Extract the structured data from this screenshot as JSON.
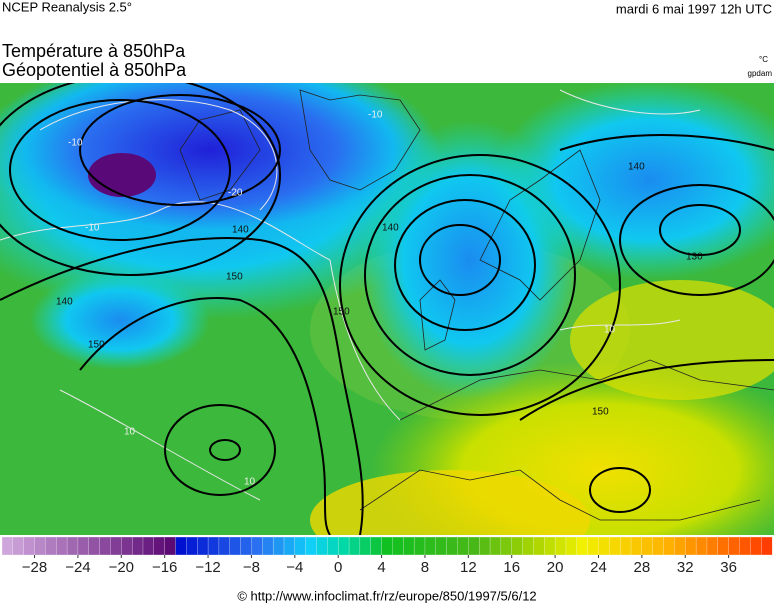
{
  "header": {
    "source": "NCEP Reanalysis 2.5°",
    "date": "mardi 6 mai 1997 12h UTC",
    "title_line1": "Température à 850hPa",
    "title_line2": "Géopotentiel à 850hPa",
    "unit_temperature": "°C",
    "unit_geopotential": "gpdam"
  },
  "map": {
    "contour_labels": [
      "-10",
      "-10",
      "-20",
      "140",
      "150",
      "150",
      "140",
      "150",
      "10",
      "10",
      "140",
      "-10",
      "140",
      "130",
      "10",
      "150"
    ]
  },
  "colorbar": {
    "lim": [
      -31,
      40
    ],
    "ticks": [
      {
        "value": -28,
        "label": "−28"
      },
      {
        "value": -24,
        "label": "−24"
      },
      {
        "value": -20,
        "label": "−20"
      },
      {
        "value": -16,
        "label": "−16"
      },
      {
        "value": -12,
        "label": "−12"
      },
      {
        "value": -8,
        "label": "−8"
      },
      {
        "value": -4,
        "label": "−4"
      },
      0,
      4,
      8,
      12,
      16,
      20,
      24,
      28,
      32,
      36
    ],
    "color_stops": [
      {
        "value": -31,
        "color": "#cfa6dc"
      },
      {
        "value": -16,
        "color": "#5c0a74"
      },
      {
        "value": -15,
        "color": "#0010d0"
      },
      {
        "value": -8,
        "color": "#2a70f0"
      },
      {
        "value": -3,
        "color": "#10d0f8"
      },
      {
        "value": 0,
        "color": "#00d8a8"
      },
      {
        "value": 4,
        "color": "#10c020"
      },
      {
        "value": 12,
        "color": "#48b818"
      },
      {
        "value": 18,
        "color": "#b0d800"
      },
      {
        "value": 22,
        "color": "#f0f000"
      },
      {
        "value": 30,
        "color": "#ffb000"
      },
      {
        "value": 40,
        "color": "#ff3000"
      }
    ]
  },
  "footer": {
    "url": "© http://www.infoclimat.fr/rz/europe/850/1997/5/6/12"
  }
}
